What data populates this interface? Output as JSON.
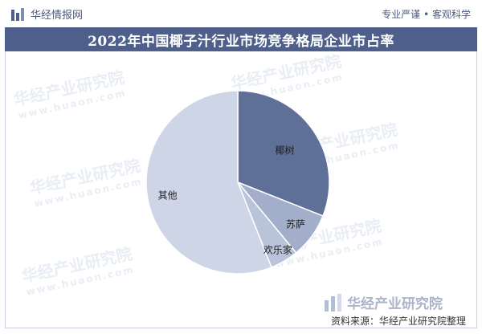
{
  "header": {
    "brand": "华经情报网",
    "slogan": "专业严谨 • 客观科学",
    "title": "2022年中国椰子汁行业市场竞争格局企业市占率"
  },
  "watermark": {
    "text": "华经产业研究院",
    "url": "www.huaon.com"
  },
  "footer": {
    "brand": "华经产业研究院",
    "source": "资料来源：华经产业研究院整理"
  },
  "colors": {
    "title_bar": "#4d5f8a",
    "slice_1": "#5e6f98",
    "slice_2": "#a3aecb",
    "slice_3": "#b9c3d9",
    "slice_4": "#cdd5e6"
  },
  "chart_data": {
    "type": "pie",
    "title": "2022年中国椰子汁行业市场竞争格局企业市占率",
    "start_angle_deg": 0,
    "direction": "clockwise",
    "legend": "none",
    "data_labels": true,
    "slices": [
      {
        "label": "椰树",
        "value": 31
      },
      {
        "label": "苏萨",
        "value": 8
      },
      {
        "label": "欢乐家",
        "value": 5
      },
      {
        "label": "其他",
        "value": 56
      }
    ]
  }
}
